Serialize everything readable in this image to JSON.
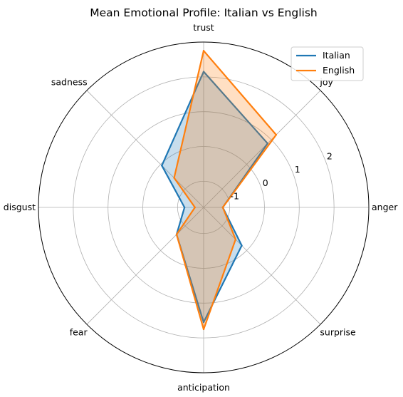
{
  "chart_data": {
    "type": "radar",
    "title": "Mean Emotional Profile: Italian vs English",
    "categories": [
      "anger",
      "joy",
      "trust",
      "sadness",
      "disgust",
      "fear",
      "anticipation",
      "surprise"
    ],
    "rlim": [
      -1.75,
      3.0
    ],
    "rticks": [
      -1,
      0,
      1,
      2
    ],
    "rtick_labels": [
      "-1",
      "0",
      "1",
      "2"
    ],
    "grid": true,
    "legend_position": "top-right",
    "series": [
      {
        "name": "Italian",
        "color": "#1f77b4",
        "values": [
          -1.2,
          0.85,
          2.15,
          -0.05,
          -1.2,
          -0.65,
          1.55,
          -0.2
        ]
      },
      {
        "name": "English",
        "color": "#ff7f0e",
        "values": [
          -1.2,
          1.2,
          2.75,
          -0.55,
          -1.5,
          -0.65,
          1.75,
          -0.45
        ]
      }
    ]
  }
}
